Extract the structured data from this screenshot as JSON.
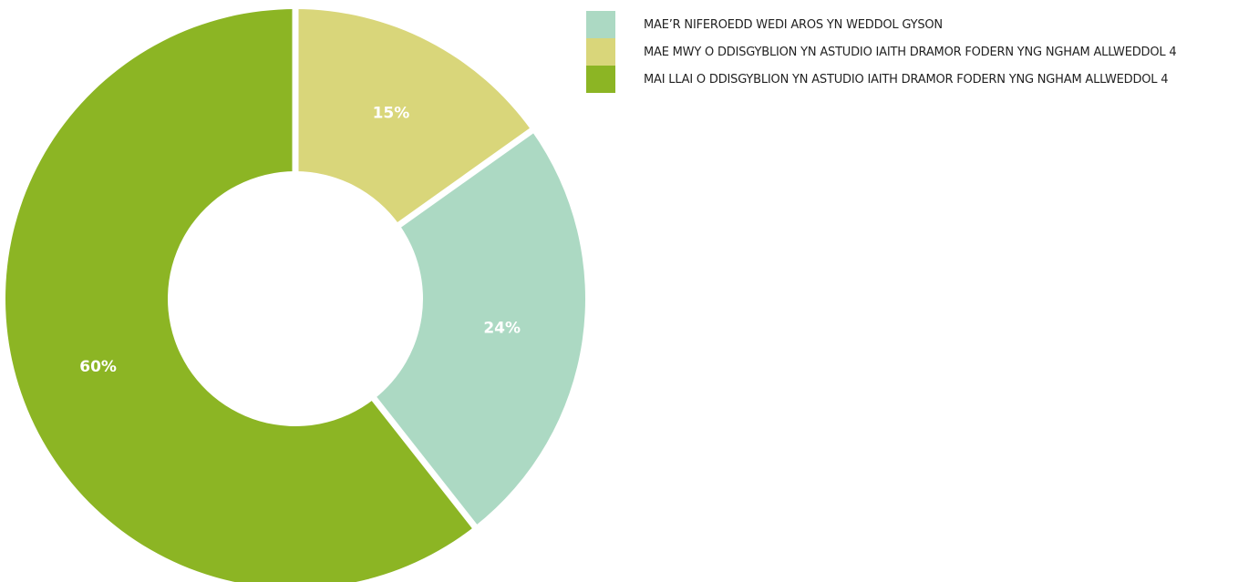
{
  "chart_data": {
    "type": "pie",
    "variant": "donut",
    "title": "",
    "legend_position": "top-right",
    "slices": [
      {
        "label": "MAE MWY O DDISGYBLION YN ASTUDIO IAITH DRAMOR FODERN YNG NGHAM ALLWEDDOL 4",
        "value": 15,
        "display": "15%",
        "color": "#d9d67a"
      },
      {
        "label": "MAE'R NIFEROEDD WEDI AROS YN WEDDOL GYSON",
        "value": 24,
        "display": "24%",
        "color": "#acd9c3"
      },
      {
        "label": "MAI LLAI O DDISGYBLION YN ASTUDIO IAITH DRAMOR FODERN YNG NGHAM ALLWEDDOL 4",
        "value": 60,
        "display": "60%",
        "color": "#8cb524"
      }
    ],
    "legend": [
      {
        "label": "MAE’R NIFEROEDD WEDI AROS YN WEDDOL GYSON",
        "color": "#acd9c3"
      },
      {
        "label": "MAE MWY O DDISGYBLION YN ASTUDIO IAITH DRAMOR FODERN YNG NGHAM ALLWEDDOL 4",
        "color": "#d9d67a"
      },
      {
        "label": "MAI LLAI O DDISGYBLION YN ASTUDIO IAITH DRAMOR FODERN YNG NGHAM ALLWEDDOL 4",
        "color": "#8cb524"
      }
    ]
  }
}
